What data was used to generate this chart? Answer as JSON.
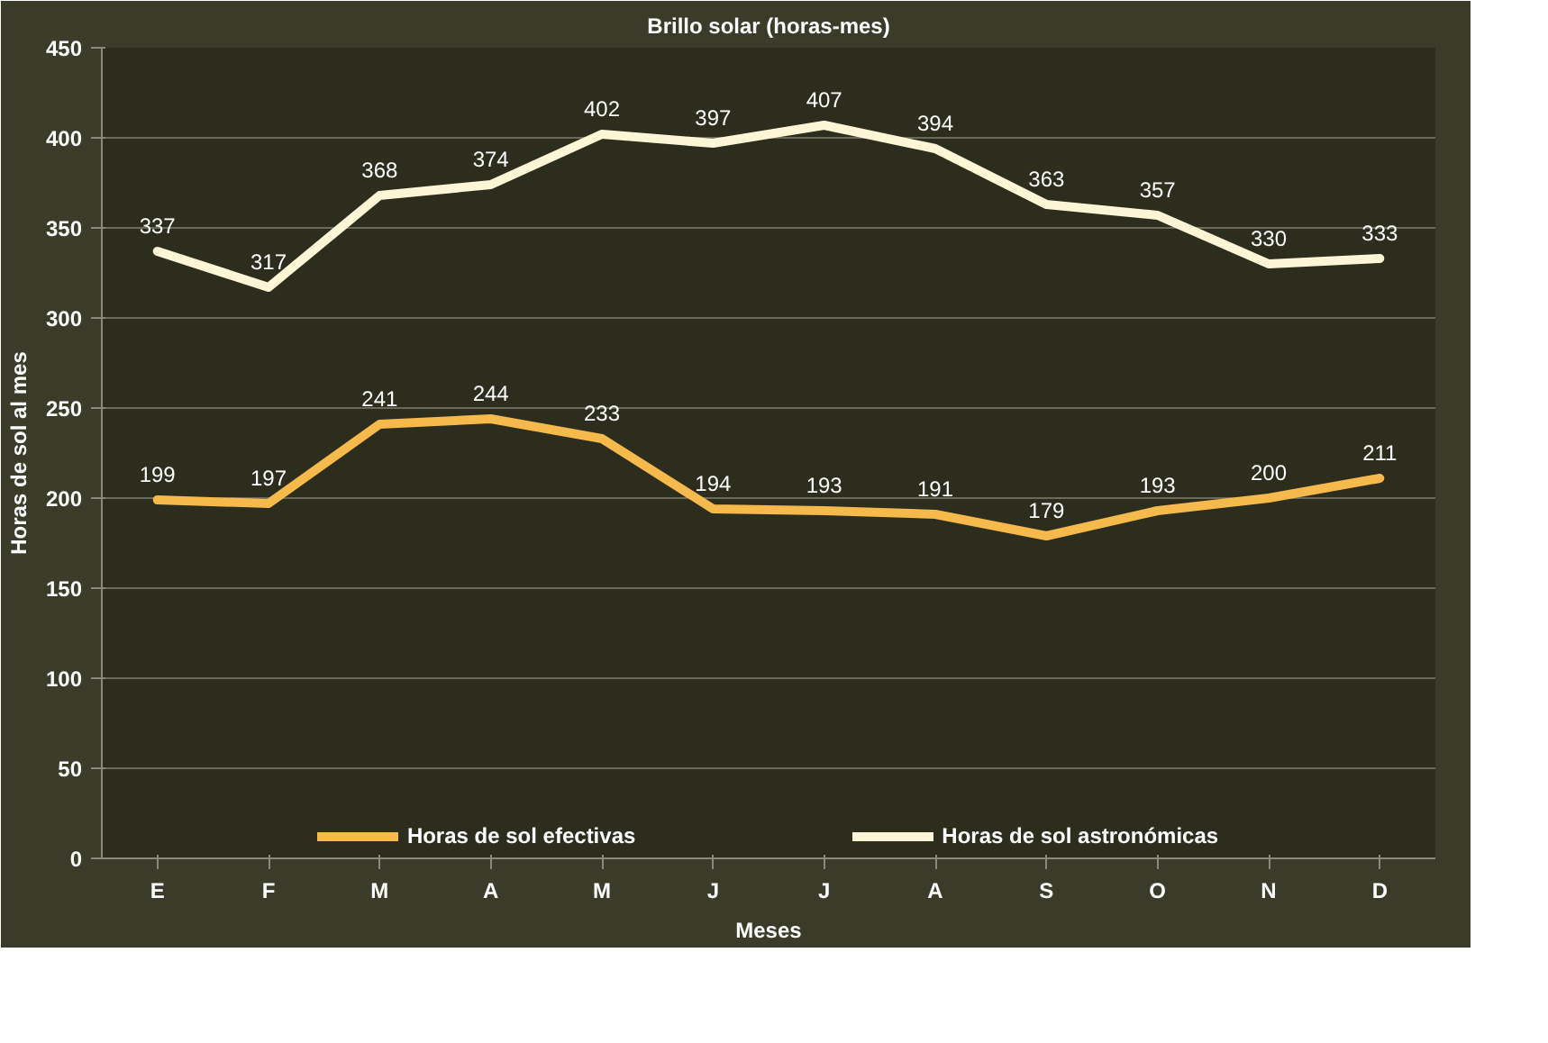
{
  "chart_data": {
    "type": "line",
    "title": "Brillo solar (horas-mes)",
    "xlabel": "Meses",
    "ylabel": "Horas de sol al mes",
    "categories": [
      "E",
      "F",
      "M",
      "A",
      "M",
      "J",
      "J",
      "A",
      "S",
      "O",
      "N",
      "D"
    ],
    "series": [
      {
        "name": "Horas de sol efectivas",
        "color": "#f6b94c",
        "values": [
          199,
          197,
          241,
          244,
          233,
          194,
          193,
          191,
          179,
          193,
          200,
          211
        ]
      },
      {
        "name": "Horas de sol astronómicas",
        "color": "#fdf6d6",
        "values": [
          337,
          317,
          368,
          374,
          402,
          397,
          407,
          394,
          363,
          357,
          330,
          333
        ]
      }
    ],
    "ylim": [
      0,
      450
    ],
    "yticks": [
      0,
      50,
      100,
      150,
      200,
      250,
      300,
      350,
      400,
      450
    ],
    "grid": "y",
    "legend": "bottom",
    "data_labels": true,
    "marker": "none",
    "line_style": "solid"
  }
}
